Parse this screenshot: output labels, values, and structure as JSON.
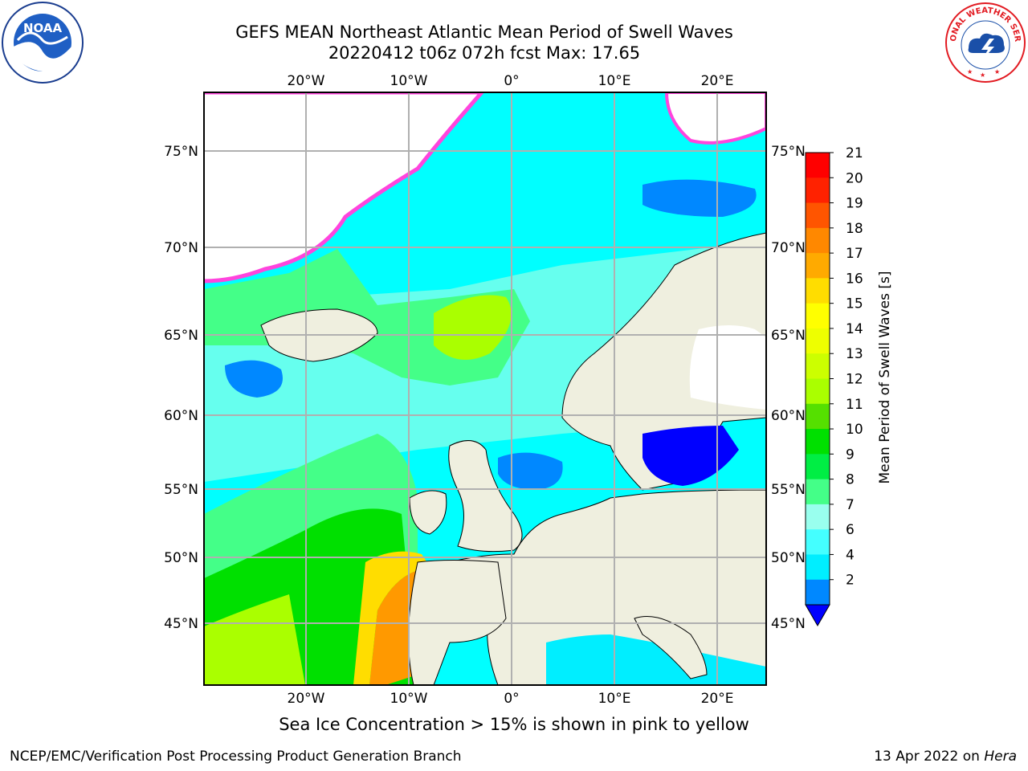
{
  "title": {
    "line1": "GEFS MEAN Northeast Atlantic Mean Period of Swell Waves",
    "line2": "20220412 t06z 072h fcst   Max: 17.65"
  },
  "map": {
    "lon_labels": [
      "20°W",
      "10°W",
      "0°",
      "10°E",
      "20°E"
    ],
    "lat_labels": [
      "75°N",
      "70°N",
      "65°N",
      "60°N",
      "55°N",
      "50°N",
      "45°N"
    ],
    "colors": {
      "land": "#efefdf",
      "ocean_low": "#00ffff",
      "ocean_mid": "#44ff88",
      "ocean_high": "#00e000",
      "grid": "#b0b0b0",
      "ice_pink": "#ff44dd",
      "ice_yellow": "#ffe000"
    }
  },
  "colorbar": {
    "label": "Mean Period of Swell Waves [s]",
    "ticks": [
      "21",
      "20",
      "19",
      "18",
      "17",
      "16",
      "15",
      "14",
      "13",
      "12",
      "11",
      "10",
      "9",
      "8",
      "7",
      "6",
      "4",
      "2"
    ],
    "colors": [
      "#ff0000",
      "#ff2200",
      "#ff5500",
      "#ff8800",
      "#ffaa00",
      "#ffdd00",
      "#ffff00",
      "#eeff00",
      "#ccff00",
      "#aaff00",
      "#55e000",
      "#00e000",
      "#00ee44",
      "#44ff88",
      "#99ffee",
      "#44ffff",
      "#00eeff",
      "#0088ff",
      "#0000ff"
    ]
  },
  "note": "Sea Ice Concentration > 15% is shown in pink to yellow",
  "footer": {
    "left": "NCEP/EMC/Verification Post Processing Product Generation Branch",
    "date": "13 Apr 2022 on ",
    "machine": "Hera"
  },
  "logos": {
    "noaa_text": "NOAA",
    "nws_text": "NATIONAL WEATHER SERVICE"
  }
}
